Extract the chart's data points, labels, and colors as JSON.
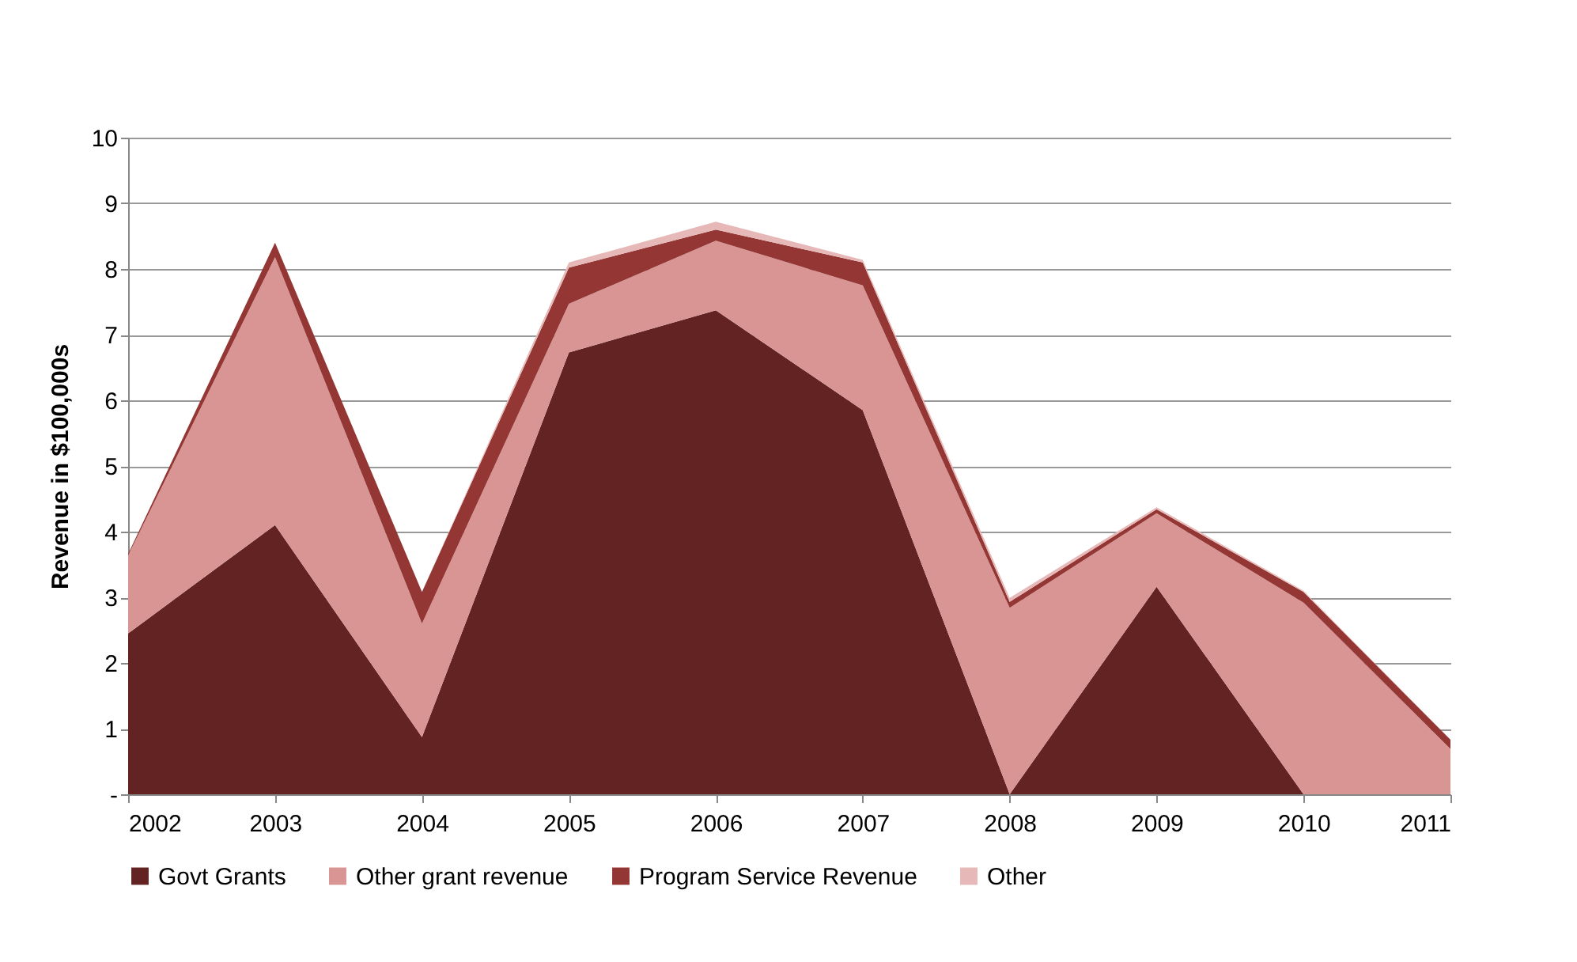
{
  "chart_data": {
    "type": "area",
    "stacked": true,
    "ylabel": "Revenue in $100,000s",
    "categories": [
      "2002",
      "2003",
      "2004",
      "2005",
      "2006",
      "2007",
      "2008",
      "2009",
      "2010",
      "2011"
    ],
    "series": [
      {
        "name": "Govt Grants",
        "color": "#632323",
        "values": [
          2.45,
          4.1,
          0.87,
          6.73,
          7.37,
          5.85,
          0,
          3.16,
          0,
          0
        ]
      },
      {
        "name": "Other grant revenue",
        "color": "#d99594",
        "values": [
          1.19,
          4.08,
          1.73,
          0.74,
          1.06,
          1.9,
          2.84,
          1.12,
          2.92,
          0.69
        ]
      },
      {
        "name": "Program Service Revenue",
        "color": "#943634",
        "values": [
          0.02,
          0.22,
          0.48,
          0.55,
          0.17,
          0.35,
          0.09,
          0.06,
          0.16,
          0.14
        ]
      },
      {
        "name": "Other",
        "color": "#e6b9b8",
        "values": [
          0,
          0,
          0,
          0.08,
          0.12,
          0.04,
          0.06,
          0.03,
          0.02,
          0
        ]
      }
    ],
    "ylim": [
      0,
      10
    ],
    "yticks": [
      {
        "value": 0,
        "label": "-"
      },
      1,
      2,
      3,
      4,
      5,
      6,
      7,
      8,
      9,
      10
    ],
    "grid": "y",
    "legend": "bottom"
  }
}
